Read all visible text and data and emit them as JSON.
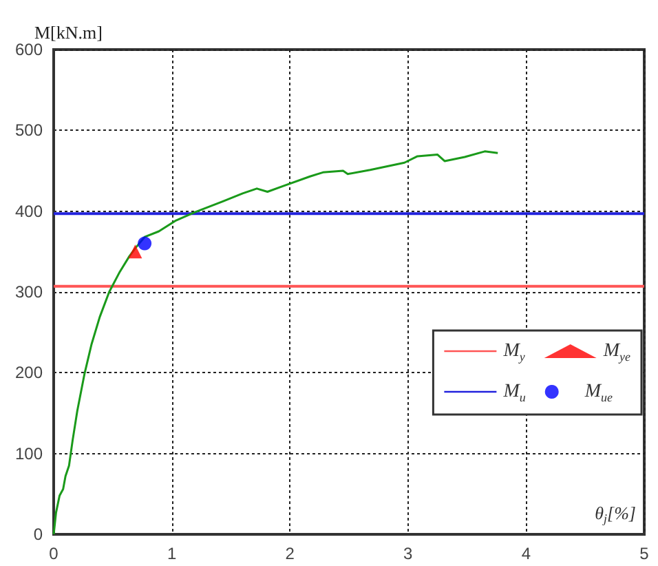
{
  "chart_data": {
    "type": "line",
    "xlabel": "θ$_{j}$[%]",
    "ylabel": "M[kN.m]",
    "xlim": [
      0,
      5
    ],
    "ylim": [
      0,
      600
    ],
    "xticks": [
      0,
      1,
      2,
      3,
      4,
      5
    ],
    "yticks": [
      0,
      100,
      200,
      300,
      400,
      500,
      600
    ],
    "grid": true,
    "legend": "right",
    "series": [
      {
        "color": "#1a9a1a",
        "x": [
          0,
          0.02,
          0.05,
          0.08,
          0.1,
          0.13,
          0.16,
          0.2,
          0.26,
          0.32,
          0.39,
          0.47,
          0.56,
          0.64,
          0.69,
          0.77,
          0.89,
          1.03,
          1.2,
          1.43,
          1.6,
          1.72,
          1.81,
          1.94,
          2.17,
          2.28,
          2.45,
          2.49,
          2.68,
          2.97,
          3.08,
          3.25,
          3.31,
          3.48,
          3.65,
          3.76
        ],
        "values": [
          0,
          27,
          48,
          56,
          72,
          85,
          116,
          153,
          198,
          235,
          269,
          300,
          325,
          344,
          354,
          368,
          375,
          388,
          399,
          412,
          422,
          428,
          424,
          431,
          443,
          448,
          450,
          446,
          451,
          460,
          468,
          470,
          462,
          467,
          474,
          472
        ],
        "marker": "none"
      },
      {
        "type": "scatter",
        "name": "M$_{ye}$",
        "color": "#ff0000",
        "marker": "triangle",
        "x": [
          0.69
        ],
        "values": [
          350
        ]
      },
      {
        "type": "scatter",
        "name": "M$_{ue}$",
        "color": "#0000ff",
        "marker": "circle",
        "x": [
          0.77
        ],
        "values": [
          360
        ]
      }
    ],
    "ref_lines": [
      {
        "axis": "y",
        "value": 307,
        "label": "M$_{y}$",
        "color": "#ff5555"
      },
      {
        "axis": "y",
        "value": 397,
        "label": "M$_{u}$",
        "color": "#2222dd"
      }
    ]
  }
}
